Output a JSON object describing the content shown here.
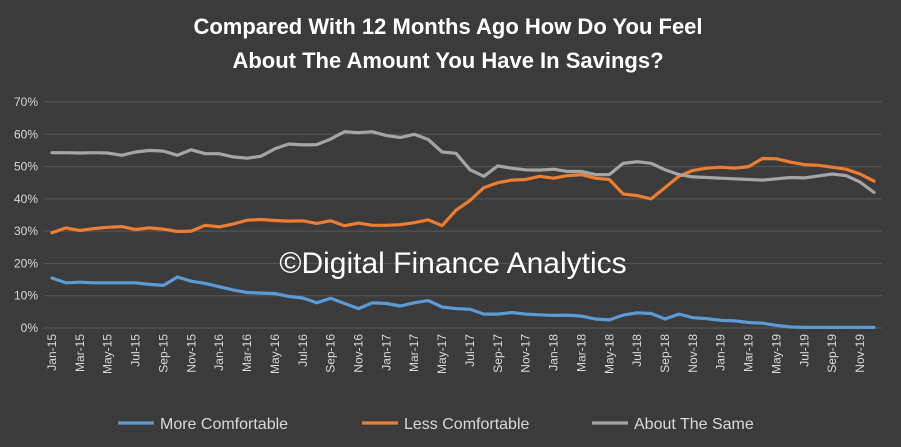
{
  "chart_data": {
    "type": "line",
    "title_lines": [
      "Compared With 12 Months Ago How Do You Feel",
      "About The Amount You Have In Savings?"
    ],
    "watermark": "©Digital Finance Analytics",
    "x_tick_labels": [
      "Jan-15",
      "Mar-15",
      "May-15",
      "Jul-15",
      "Sep-15",
      "Nov-15",
      "Jan-16",
      "Mar-16",
      "May-16",
      "Jul-16",
      "Sep-16",
      "Nov-16",
      "Jan-17",
      "Mar-17",
      "May-17",
      "Jul-17",
      "Sep-17",
      "Nov-17",
      "Jan-18",
      "Mar-18",
      "May-18",
      "Jul-18",
      "Sep-18",
      "Nov-18",
      "Jan-19",
      "Mar-19",
      "May-19",
      "Jul-19",
      "Sep-19",
      "Nov-19"
    ],
    "y_tick_labels": [
      "0%",
      "10%",
      "20%",
      "30%",
      "40%",
      "50%",
      "60%",
      "70%"
    ],
    "ylim": [
      0,
      70
    ],
    "grid": true,
    "legend_position": "bottom",
    "series": [
      {
        "name": "More Comfortable",
        "color": "#5b9bd5",
        "values": [
          15.5,
          14,
          14.2,
          14,
          14,
          14,
          14,
          13.5,
          13.2,
          15.8,
          14.5,
          13.8,
          12.8,
          11.8,
          11,
          10.8,
          10.7,
          9.8,
          9.3,
          7.8,
          9.2,
          7.6,
          6,
          7.8,
          7.6,
          6.8,
          7.8,
          8.5,
          6.5,
          6,
          5.8,
          4.3,
          4.3,
          4.8,
          4.3,
          4.1,
          3.9,
          4,
          3.7,
          2.8,
          2.5,
          4,
          4.7,
          4.5,
          2.8,
          4.3,
          3.2,
          2.9,
          2.4,
          2.2,
          1.7,
          1.5,
          0.8,
          0.3,
          0.2,
          0.2,
          0.2,
          0.2,
          0.2,
          0.2
        ]
      },
      {
        "name": "Less Comfortable",
        "color": "#ed7d31",
        "values": [
          29.5,
          31,
          30.2,
          30.8,
          31.2,
          31.4,
          30.5,
          31,
          30.6,
          29.9,
          30,
          31.8,
          31.3,
          32.2,
          33.4,
          33.6,
          33.3,
          33.1,
          33.2,
          32.4,
          33.2,
          31.7,
          32.5,
          31.8,
          31.8,
          32,
          32.6,
          33.5,
          31.7,
          36.5,
          39.5,
          43.5,
          45,
          45.8,
          46,
          47,
          46.4,
          47.2,
          47.5,
          46.4,
          46,
          41.5,
          41,
          40,
          43.5,
          47,
          48.8,
          49.5,
          49.8,
          49.5,
          50,
          52.5,
          52.4,
          51.4,
          50.6,
          50.4,
          49.8,
          49.2,
          47.7,
          45.5
        ]
      },
      {
        "name": "About The Same",
        "color": "#a5a5a5",
        "values": [
          54.3,
          54.3,
          54.2,
          54.3,
          54.2,
          53.5,
          54.5,
          55,
          54.8,
          53.5,
          55.2,
          54,
          54,
          53,
          52.6,
          53.2,
          55.5,
          57,
          56.7,
          56.8,
          58.5,
          60.8,
          60.5,
          60.8,
          59.6,
          59,
          60,
          58.4,
          54.5,
          54.1,
          49,
          47,
          50.2,
          49.5,
          49,
          48.9,
          49.2,
          48.5,
          48.5,
          47.5,
          47.5,
          51,
          51.5,
          51,
          49,
          47.5,
          46.8,
          46.6,
          46.4,
          46.2,
          46,
          45.8,
          46.2,
          46.6,
          46.5,
          47.1,
          47.7,
          47.2,
          45.2,
          42
        ]
      }
    ]
  }
}
